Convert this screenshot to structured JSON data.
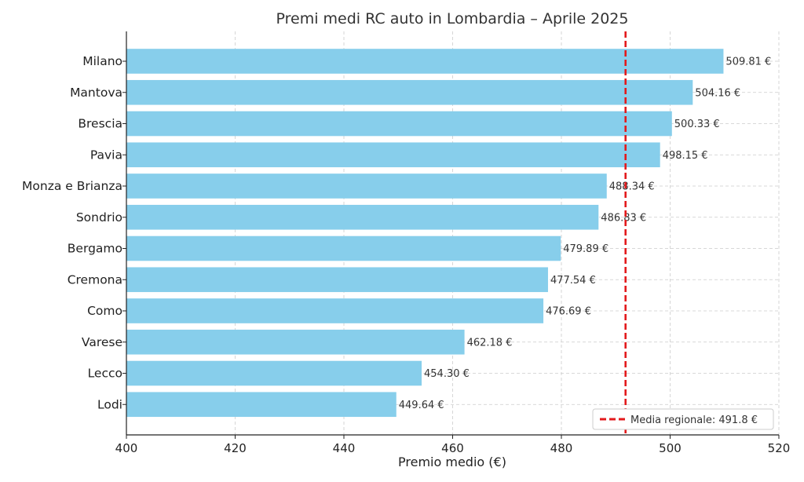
{
  "chart_data": {
    "type": "bar",
    "orientation": "horizontal",
    "title": "Premi medi RC auto in Lombardia – Aprile 2025",
    "xlabel": "Premio medio (€)",
    "ylabel": "",
    "xlim": [
      400,
      520
    ],
    "xticks": [
      400,
      420,
      440,
      460,
      480,
      500,
      520
    ],
    "grid": true,
    "bar_color": "#87CEEB",
    "categories": [
      "Milano",
      "Mantova",
      "Brescia",
      "Pavia",
      "Monza e Brianza",
      "Sondrio",
      "Bergamo",
      "Cremona",
      "Como",
      "Varese",
      "Lecco",
      "Lodi"
    ],
    "values": [
      509.81,
      504.16,
      500.33,
      498.15,
      488.34,
      486.83,
      479.89,
      477.54,
      476.69,
      462.18,
      454.3,
      449.64
    ],
    "value_labels": [
      "509.81 €",
      "504.16 €",
      "500.33 €",
      "498.15 €",
      "488.34 €",
      "486.83 €",
      "479.89 €",
      "477.54 €",
      "476.69 €",
      "462.18 €",
      "454.30 €",
      "449.64 €"
    ],
    "reference_line": {
      "value": 491.8,
      "label": "Media regionale: 491.8 €",
      "color": "#e31a1c",
      "style": "dashed"
    },
    "legend": {
      "position": "bottom-right"
    }
  }
}
